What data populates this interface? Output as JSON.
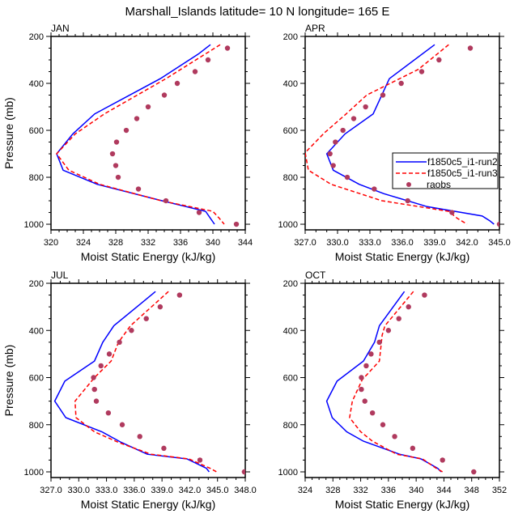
{
  "chart_data": {
    "type": "line",
    "title": "Marshall_Islands  latitude= 10 N longitude= 165 E",
    "legend": {
      "placement": "inside APR panel, right",
      "entries": [
        {
          "name": "f1850c5_i1-run2",
          "style": "solid",
          "color": "#0000ff"
        },
        {
          "name": "f1850c5_i1-run3",
          "style": "dashed",
          "color": "#ff0000"
        },
        {
          "name": "raobs",
          "style": "marker",
          "color": "#b03a5e"
        }
      ]
    },
    "panels": [
      {
        "label": "JAN",
        "xlabel": "Moist Static Energy (kJ/kg)",
        "ylabel": "Pressure (mb)",
        "xlim": [
          320,
          344
        ],
        "xticks": [
          "320",
          "324",
          "328",
          "332",
          "336",
          "340",
          "344"
        ],
        "xtick_values": [
          320,
          324,
          328,
          332,
          336,
          340,
          344
        ],
        "xminor": 1,
        "ylim": [
          200,
          1024
        ],
        "yticks": [
          200,
          400,
          600,
          800,
          1000
        ],
        "series": [
          {
            "name": "f1850c5_i1-run2",
            "p": [
              235,
              275,
              380,
              530,
              615,
              700,
              770,
              830,
              900,
              945,
              975,
              1000
            ],
            "x": [
              339.7,
              338.2,
              333.5,
              325.4,
              322.7,
              320.7,
              321.5,
              325.7,
              333.7,
              339.1,
              339.7,
              340.2
            ]
          },
          {
            "name": "f1850c5_i1-run3",
            "p": [
              235,
              380,
              530,
              615,
              700,
              770,
              830,
              900,
              945,
              975,
              1000
            ],
            "x": [
              340.9,
              334.2,
              326.6,
              323.0,
              320.7,
              322.2,
              326.0,
              333.6,
              340.0,
              340.8,
              341.4
            ]
          },
          {
            "name": "raobs",
            "p": [
              250,
              300,
              350,
              400,
              450,
              500,
              550,
              600,
              650,
              700,
              750,
              800,
              850,
              900,
              950,
              1000
            ],
            "x": [
              341.8,
              339.4,
              337.8,
              335.6,
              334.0,
              332.0,
              330.6,
              329.3,
              328.1,
              327.6,
              328.0,
              328.3,
              330.8,
              334.2,
              338.3,
              342.9
            ]
          }
        ]
      },
      {
        "label": "APR",
        "xlabel": "Moist Static Energy (kJ/kg)",
        "ylabel": "",
        "xlim": [
          327,
          345
        ],
        "xticks": [
          "327.0",
          "330.0",
          "333.0",
          "336.0",
          "339.0",
          "342.0",
          "345.0"
        ],
        "xtick_values": [
          327,
          330,
          333,
          336,
          339,
          342,
          345
        ],
        "xminor": 1,
        "ylim": [
          200,
          1024
        ],
        "yticks": [
          200,
          400,
          600,
          800,
          1000
        ],
        "series": [
          {
            "name": "f1850c5_i1-run2",
            "p": [
              235,
              380,
              530,
              615,
              700,
              770,
              830,
              870,
              925,
              965,
              985,
              1000
            ],
            "x": [
              339.0,
              334.8,
              333.3,
              330.7,
              329.0,
              329.6,
              332.0,
              334.3,
              338.3,
              343.4,
              344.1,
              344.5
            ]
          },
          {
            "name": "f1850c5_i1-run3",
            "p": [
              235,
              340,
              450,
              530,
              610,
              695,
              770,
              830,
              900,
              945,
              975,
              1000
            ],
            "x": [
              340.3,
              337.5,
              332.7,
              330.8,
              328.8,
              327.0,
              327.3,
              329.4,
              334.1,
              340.3,
              341.1,
              342.0
            ]
          },
          {
            "name": "raobs",
            "p": [
              250,
              300,
              350,
              400,
              450,
              500,
              550,
              600,
              650,
              700,
              750,
              800,
              850,
              900,
              950,
              1000
            ],
            "x": [
              342.3,
              339.4,
              337.8,
              335.9,
              334.2,
              332.6,
              331.5,
              330.5,
              329.8,
              329.3,
              329.6,
              330.9,
              333.4,
              336.5,
              340.6,
              345.0
            ]
          }
        ]
      },
      {
        "label": "JUL",
        "xlabel": "Moist Static Energy (kJ/kg)",
        "ylabel": "Pressure (mb)",
        "xlim": [
          327,
          348
        ],
        "xticks": [
          "327.0",
          "330.0",
          "333.0",
          "336.0",
          "339.0",
          "342.0",
          "345.0",
          "348.0"
        ],
        "xtick_values": [
          327,
          330,
          333,
          336,
          339,
          342,
          345,
          348
        ],
        "xminor": 1,
        "ylim": [
          200,
          1024
        ],
        "yticks": [
          200,
          400,
          600,
          800,
          1000
        ],
        "series": [
          {
            "name": "f1850c5_i1-run2",
            "p": [
              235,
              290,
              380,
              450,
              530,
              615,
              700,
              770,
              830,
              875,
              925,
              945,
              985,
              1000
            ],
            "x": [
              338.3,
              336.6,
              333.8,
              332.6,
              331.7,
              328.5,
              327.4,
              328.6,
              332.5,
              334.6,
              337.4,
              341.7,
              343.8,
              344.1
            ]
          },
          {
            "name": "f1850c5_i1-run3",
            "p": [
              235,
              380,
              450,
              530,
              600,
              700,
              770,
              830,
              875,
              925,
              945,
              985,
              1000
            ],
            "x": [
              339.7,
              335.6,
              334.3,
              333.5,
              331.7,
              329.6,
              329.7,
              331.7,
              334.3,
              337.8,
              341.9,
              344.2,
              344.9
            ]
          },
          {
            "name": "raobs",
            "p": [
              250,
              300,
              350,
              400,
              450,
              500,
              550,
              600,
              650,
              700,
              750,
              800,
              850,
              900,
              950,
              1000
            ],
            "x": [
              340.9,
              338.8,
              337.3,
              335.7,
              334.4,
              333.3,
              332.4,
              331.6,
              331.7,
              331.9,
              333.2,
              334.7,
              336.6,
              339.2,
              343.1,
              347.9
            ]
          }
        ]
      },
      {
        "label": "OCT",
        "xlabel": "Moist Static Energy (kJ/kg)",
        "ylabel": "",
        "xlim": [
          324,
          352
        ],
        "xticks": [
          "324",
          "328",
          "332",
          "336",
          "340",
          "344",
          "348",
          "352"
        ],
        "xtick_values": [
          324,
          328,
          332,
          336,
          340,
          344,
          348,
          352
        ],
        "xminor": 1,
        "ylim": [
          200,
          1024
        ],
        "yticks": [
          200,
          400,
          600,
          800,
          1000
        ],
        "series": [
          {
            "name": "f1850c5_i1-run2",
            "p": [
              235,
              380,
              450,
              530,
              615,
              700,
              770,
              830,
              870,
              925,
              945,
              985,
              1000
            ],
            "x": [
              338.3,
              334.7,
              334.0,
              332.4,
              328.6,
              327.1,
              327.9,
              330.0,
              332.4,
              337.6,
              340.7,
              343.1,
              343.6
            ]
          },
          {
            "name": "f1850c5_i1-run3",
            "p": [
              235,
              380,
              420,
              530,
              610,
              700,
              770,
              830,
              870,
              925,
              945,
              985,
              1000
            ],
            "x": [
              339.6,
              335.5,
              335.1,
              334.7,
              332.2,
              330.8,
              330.4,
              332.0,
              333.7,
              337.2,
              340.9,
              342.9,
              343.8
            ]
          },
          {
            "name": "raobs",
            "p": [
              250,
              300,
              350,
              400,
              450,
              500,
              550,
              600,
              650,
              700,
              750,
              800,
              850,
              900,
              950,
              1000
            ],
            "x": [
              341.2,
              338.9,
              337.5,
              336.0,
              334.7,
              333.5,
              332.8,
              332.1,
              332.1,
              332.6,
              333.7,
              335.2,
              336.9,
              339.5,
              343.8,
              348.3
            ]
          }
        ]
      }
    ]
  }
}
